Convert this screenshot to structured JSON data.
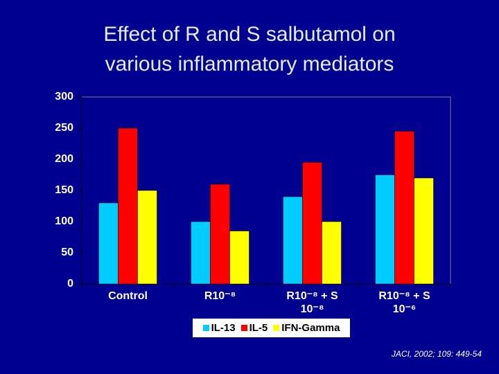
{
  "chart_data": {
    "type": "bar",
    "title": "Effect of R and S salbutamol on various inflammatory mediators",
    "categories": [
      "Control",
      "R10⁻⁸",
      "R10⁻⁸ + S 10⁻⁸",
      "R10⁻⁸ + S 10⁻⁶"
    ],
    "series": [
      {
        "name": "IL-13",
        "color": "#00ccff",
        "values": [
          130,
          100,
          140,
          175
        ]
      },
      {
        "name": "IL-5",
        "color": "#ff0000",
        "values": [
          250,
          160,
          195,
          245
        ]
      },
      {
        "name": "IFN-Gamma",
        "color": "#ffff00",
        "values": [
          150,
          85,
          100,
          170
        ]
      }
    ],
    "ylim": [
      0,
      300
    ],
    "yticks": [
      0,
      50,
      100,
      150,
      200,
      250,
      300
    ],
    "source": "JACI, 2002; 109: 449-54"
  }
}
